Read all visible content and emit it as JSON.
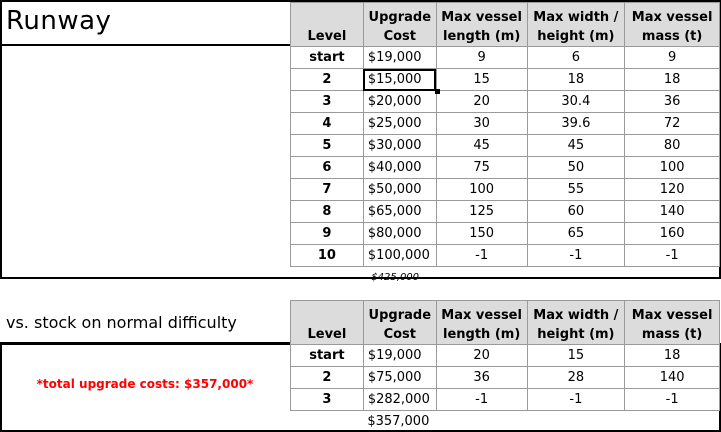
{
  "section1": {
    "title": "Runway",
    "headers": [
      "Level",
      "Upgrade Cost",
      "Max vessel length (m)",
      "Max width / height (m)",
      "Max vessel mass (t)"
    ],
    "rows": [
      [
        "start",
        "$19,000",
        "9",
        "6",
        "9"
      ],
      [
        "2",
        "$15,000",
        "15",
        "18",
        "18"
      ],
      [
        "3",
        "$20,000",
        "20",
        "30.4",
        "36"
      ],
      [
        "4",
        "$25,000",
        "30",
        "39.6",
        "72"
      ],
      [
        "5",
        "$30,000",
        "45",
        "45",
        "80"
      ],
      [
        "6",
        "$40,000",
        "75",
        "50",
        "100"
      ],
      [
        "7",
        "$50,000",
        "100",
        "55",
        "120"
      ],
      [
        "8",
        "$65,000",
        "125",
        "60",
        "140"
      ],
      [
        "9",
        "$80,000",
        "150",
        "65",
        "160"
      ],
      [
        "10",
        "$100,000",
        "-1",
        "-1",
        "-1"
      ]
    ],
    "total": "$425,000"
  },
  "section2": {
    "title": "vs. stock on normal difficulty",
    "note": "*total upgrade costs: $357,000*",
    "headers": [
      "Level",
      "Upgrade Cost",
      "Max vessel length (m)",
      "Max width / height (m)",
      "Max vessel mass (t)"
    ],
    "rows": [
      [
        "start",
        "$19,000",
        "20",
        "15",
        "18"
      ],
      [
        "2",
        "$75,000",
        "36",
        "28",
        "140"
      ],
      [
        "3",
        "$282,000",
        "-1",
        "-1",
        "-1"
      ]
    ],
    "total": "$357,000"
  },
  "colors": {
    "header_bg": "#dcdcdc",
    "note": "#ff0000",
    "grid": "#9a9a9a"
  }
}
